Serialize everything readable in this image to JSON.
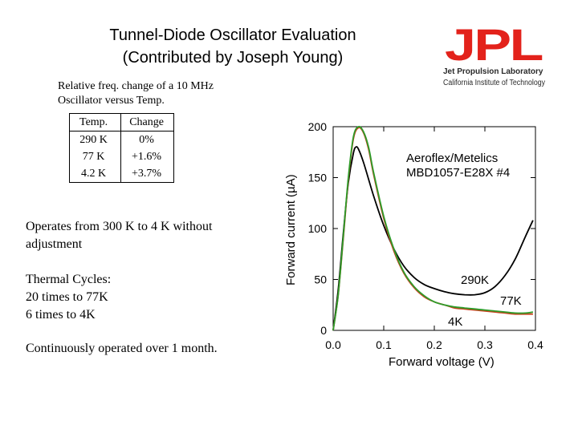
{
  "title": {
    "line1": "Tunnel-Diode Oscillator Evaluation",
    "line2": "(Contributed by Joseph Young)"
  },
  "logo": {
    "letters": "JPL",
    "sub1": "Jet Propulsion Laboratory",
    "sub2": "California Institute of Technology",
    "color": "#e3221b"
  },
  "description": {
    "line1": "Relative freq. change of a 10 MHz",
    "line2": "Oscillator versus Temp."
  },
  "table": {
    "headers": [
      "Temp.",
      "Change"
    ],
    "rows": [
      [
        "290 K",
        "0%"
      ],
      [
        "77 K",
        "+1.6%"
      ],
      [
        "4.2 K",
        "+3.7%"
      ]
    ]
  },
  "paragraphs": {
    "p1": "Operates from 300 K to 4 K without adjustment",
    "p2_line1": "Thermal Cycles:",
    "p2_line2": "20 times  to 77K",
    "p2_line3": "6 times to 4K",
    "p3": "Continuously operated over 1 month."
  },
  "chart_data": {
    "type": "line",
    "xlabel": "Forward voltage (V)",
    "ylabel": "Forward current (µA)",
    "xlim": [
      0.0,
      0.4
    ],
    "ylim": [
      0,
      200
    ],
    "x_ticks": [
      "0.0",
      "0.1",
      "0.2",
      "0.3",
      "0.4"
    ],
    "y_ticks": [
      "0",
      "50",
      "100",
      "150",
      "200"
    ],
    "grid": false,
    "device_label_line1": "Aeroflex/Metelics",
    "device_label_line2": "MBD1057-E28X #4",
    "series": [
      {
        "name": "290K",
        "color": "#000000",
        "points": [
          [
            0.0,
            0
          ],
          [
            0.01,
            40
          ],
          [
            0.02,
            95
          ],
          [
            0.03,
            145
          ],
          [
            0.04,
            174
          ],
          [
            0.045,
            180
          ],
          [
            0.05,
            178
          ],
          [
            0.06,
            165
          ],
          [
            0.08,
            132
          ],
          [
            0.1,
            103
          ],
          [
            0.12,
            80
          ],
          [
            0.14,
            63
          ],
          [
            0.16,
            52
          ],
          [
            0.18,
            45
          ],
          [
            0.2,
            41
          ],
          [
            0.22,
            38
          ],
          [
            0.24,
            36
          ],
          [
            0.26,
            35
          ],
          [
            0.28,
            35
          ],
          [
            0.3,
            37
          ],
          [
            0.32,
            43
          ],
          [
            0.34,
            54
          ],
          [
            0.36,
            70
          ],
          [
            0.38,
            92
          ],
          [
            0.395,
            108
          ]
        ]
      },
      {
        "name": "77K",
        "color": "#c8401c",
        "points": [
          [
            0.0,
            0
          ],
          [
            0.01,
            35
          ],
          [
            0.02,
            90
          ],
          [
            0.03,
            148
          ],
          [
            0.04,
            188
          ],
          [
            0.05,
            199
          ],
          [
            0.06,
            194
          ],
          [
            0.07,
            178
          ],
          [
            0.08,
            153
          ],
          [
            0.1,
            110
          ],
          [
            0.12,
            78
          ],
          [
            0.14,
            56
          ],
          [
            0.16,
            42
          ],
          [
            0.18,
            33
          ],
          [
            0.2,
            28
          ],
          [
            0.22,
            25
          ],
          [
            0.24,
            22
          ],
          [
            0.26,
            21
          ],
          [
            0.28,
            20
          ],
          [
            0.3,
            19
          ],
          [
            0.32,
            18
          ],
          [
            0.34,
            17
          ],
          [
            0.36,
            16
          ],
          [
            0.38,
            16
          ],
          [
            0.395,
            16
          ]
        ]
      },
      {
        "name": "4K",
        "color": "#2e9c2a",
        "points": [
          [
            0.0,
            0
          ],
          [
            0.01,
            35
          ],
          [
            0.02,
            92
          ],
          [
            0.03,
            150
          ],
          [
            0.04,
            190
          ],
          [
            0.05,
            200
          ],
          [
            0.06,
            195
          ],
          [
            0.07,
            180
          ],
          [
            0.08,
            155
          ],
          [
            0.1,
            112
          ],
          [
            0.12,
            80
          ],
          [
            0.14,
            57
          ],
          [
            0.16,
            43
          ],
          [
            0.18,
            34
          ],
          [
            0.2,
            28
          ],
          [
            0.22,
            25
          ],
          [
            0.24,
            23
          ],
          [
            0.26,
            22
          ],
          [
            0.28,
            21
          ],
          [
            0.3,
            20
          ],
          [
            0.32,
            19
          ],
          [
            0.34,
            18
          ],
          [
            0.36,
            17
          ],
          [
            0.38,
            17
          ],
          [
            0.395,
            18
          ]
        ]
      }
    ]
  }
}
